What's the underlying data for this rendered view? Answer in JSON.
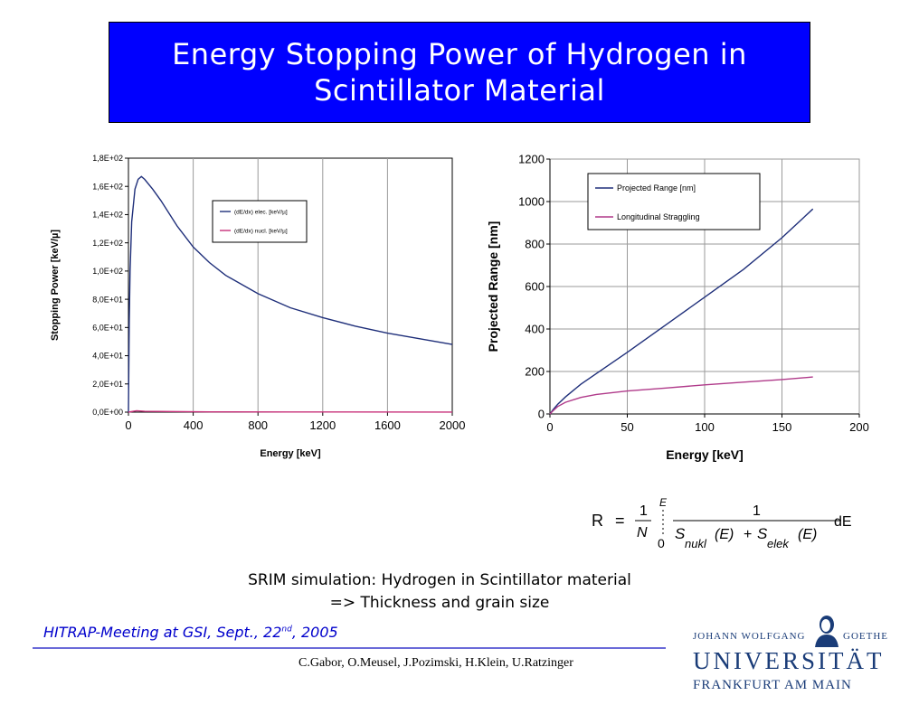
{
  "title": {
    "line1": "Energy Stopping Power of Hydrogen in",
    "line2": "Scintillator Material"
  },
  "chart_data": [
    {
      "type": "line",
      "xlabel": "Energy [keV]",
      "ylabel": "Stopping Power [keV/µ]",
      "xlim": [
        0,
        2000
      ],
      "ylim": [
        0,
        180
      ],
      "x_ticks": [
        0,
        400,
        800,
        1200,
        1600,
        2000
      ],
      "x_tick_labels": [
        "0",
        "400",
        "800",
        "1200",
        "1600",
        "2000"
      ],
      "y_ticks": [
        0,
        20,
        40,
        60,
        80,
        100,
        120,
        140,
        160,
        180
      ],
      "y_tick_labels": [
        "0,0E+00",
        "2,0E+01",
        "4,0E+01",
        "6,0E+01",
        "8,0E+01",
        "1,0E+02",
        "1,2E+02",
        "1,4E+02",
        "1,6E+02",
        "1,8E+02"
      ],
      "grid": "vertical",
      "legend_placement": "upper-right",
      "series": [
        {
          "name": "(dE/dx) elec. [keV/µ]",
          "color": "#1f2f7a",
          "x": [
            0,
            5,
            10,
            20,
            40,
            60,
            80,
            100,
            150,
            200,
            300,
            400,
            500,
            600,
            800,
            1000,
            1200,
            1400,
            1600,
            1800,
            2000
          ],
          "y": [
            0,
            65,
            100,
            135,
            158,
            165,
            167,
            165,
            158,
            150,
            132,
            117,
            106,
            97,
            84,
            74,
            67,
            61,
            56,
            52,
            48
          ]
        },
        {
          "name": "(dE/dx) nucl. [keV/µ]",
          "color": "#c8307a",
          "x": [
            0,
            50,
            100,
            500,
            1000,
            2000
          ],
          "y": [
            0,
            1,
            0.6,
            0.2,
            0.1,
            0.05
          ]
        }
      ]
    },
    {
      "type": "line",
      "xlabel": "Energy [keV]",
      "ylabel": "Projected Range [nm]",
      "xlim": [
        0,
        200
      ],
      "ylim": [
        0,
        1200
      ],
      "x_ticks": [
        0,
        50,
        100,
        150,
        200
      ],
      "x_tick_labels": [
        "0",
        "50",
        "100",
        "150",
        "200"
      ],
      "y_ticks": [
        0,
        200,
        400,
        600,
        800,
        1000,
        1200
      ],
      "y_tick_labels": [
        "0",
        "200",
        "400",
        "600",
        "800",
        "1000",
        "1200"
      ],
      "grid": "both",
      "legend_placement": "top-left",
      "series": [
        {
          "name": "Projected Range [nm]",
          "color": "#1f2f7a",
          "x": [
            0,
            2,
            5,
            10,
            15,
            20,
            30,
            50,
            75,
            100,
            125,
            150,
            170
          ],
          "y": [
            0,
            20,
            45,
            80,
            110,
            140,
            190,
            290,
            420,
            550,
            680,
            830,
            965
          ]
        },
        {
          "name": "Longitudinal Straggling",
          "color": "#b03a8a",
          "x": [
            0,
            2,
            5,
            10,
            20,
            30,
            50,
            75,
            100,
            125,
            150,
            170
          ],
          "y": [
            0,
            15,
            35,
            55,
            78,
            92,
            108,
            122,
            137,
            150,
            162,
            174
          ]
        }
      ]
    }
  ],
  "formula": {
    "lhs": "R",
    "eq": "=",
    "one": "1",
    "N": "N",
    "E": "E",
    "zero": "0",
    "S1": "S",
    "sub1": "nukl",
    "E1": "(E)",
    "plus": "+",
    "S2": "S",
    "sub2": "elek",
    "E2": "(E)",
    "dE": "dE"
  },
  "caption": {
    "line1": "SRIM simulation: Hydrogen in Scintillator material",
    "line2": "=> Thickness and grain size"
  },
  "footer": {
    "meeting_before": "HITRAP-Meeting at GSI, Sept., 22",
    "meeting_sup": "nd",
    "meeting_after": ", 2005",
    "authors": "C.Gabor, O.Meusel, J.Pozimski, H.Klein, U.Ratzinger"
  },
  "university": {
    "top_left": "JOHANN WOLFGANG",
    "top_right": "GOETHE",
    "name": "UNIVERSITÄT",
    "city": "FRANKFURT AM MAIN"
  }
}
